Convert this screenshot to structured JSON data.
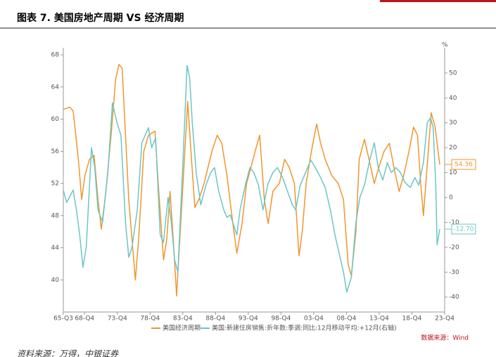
{
  "title": "图表 7. 美国房地产周期 VS 经济周期",
  "footer": "资料来源：万得，中银证券",
  "chart_data": {
    "type": "line",
    "y2_unit": "%",
    "source": "数据来源：Wind",
    "xlim": [
      1965.5,
      2023.75
    ],
    "xticks": [
      {
        "value": 1965.5,
        "label": "65-Q3"
      },
      {
        "value": 1968.75,
        "label": "68-Q4"
      },
      {
        "value": 1973.75,
        "label": "73-Q4"
      },
      {
        "value": 1978.75,
        "label": "78-Q4"
      },
      {
        "value": 1983.75,
        "label": "83-Q4"
      },
      {
        "value": 1988.75,
        "label": "88-Q4"
      },
      {
        "value": 1993.75,
        "label": "93-Q4"
      },
      {
        "value": 1998.75,
        "label": "98-Q4"
      },
      {
        "value": 2003.75,
        "label": "03-Q4"
      },
      {
        "value": 2008.75,
        "label": "08-Q4"
      },
      {
        "value": 2013.75,
        "label": "13-Q4"
      },
      {
        "value": 2018.75,
        "label": "18-Q4"
      },
      {
        "value": 2023.75,
        "label": "23-Q4"
      }
    ],
    "ylim": [
      36,
      68
    ],
    "yticks": [
      40,
      44,
      48,
      52,
      56,
      60,
      64,
      68
    ],
    "y2lim": [
      -46,
      57.3
    ],
    "y2ticks": [
      -40,
      -30,
      -20,
      -10,
      0,
      10,
      20,
      30,
      40,
      50
    ],
    "grid": false,
    "series": [
      {
        "name": "美国经济周期",
        "color": "#f0962e",
        "x": [
          1965.5,
          1966.5,
          1967,
          1967.8,
          1968.3,
          1968.8,
          1969.5,
          1970.2,
          1970.8,
          1971.3,
          1972,
          1972.8,
          1973.5,
          1974,
          1974.5,
          1975,
          1975.5,
          1976.5,
          1977,
          1977.8,
          1978.5,
          1979.5,
          1980,
          1980.8,
          1981.3,
          1981.8,
          1982.3,
          1982.8,
          1983.5,
          1984.5,
          1985,
          1985.6,
          1986.2,
          1987,
          1988.2,
          1989,
          1989.7,
          1990.5,
          1991.4,
          1992,
          1992.8,
          1993.5,
          1994,
          1994.8,
          1995.5,
          1996.2,
          1996.8,
          1997.5,
          1998.5,
          1999.3,
          2000,
          2000.8,
          2001.5,
          2002,
          2002.6,
          2003.4,
          2004.2,
          2004.8,
          2005.5,
          2006.5,
          2007.5,
          2008.3,
          2009,
          2009.5,
          2010.2,
          2010.7,
          2011.5,
          2012.2,
          2013,
          2013.7,
          2014.5,
          2015.3,
          2016,
          2016.8,
          2017.5,
          2018.3,
          2019,
          2019.6,
          2020.1,
          2020.5,
          2021.7,
          2022.3,
          2023
        ],
        "values": [
          61.2,
          61.5,
          61,
          55,
          50,
          53,
          55,
          55.5,
          50,
          46.3,
          51,
          58,
          65,
          66.8,
          66.3,
          58,
          50,
          40,
          45,
          56,
          58,
          58.5,
          52,
          42.5,
          45,
          51,
          45,
          38,
          48,
          62.2,
          56,
          49,
          50,
          52,
          56,
          58,
          57,
          53,
          47,
          43.3,
          47,
          52,
          53.5,
          56,
          58,
          50,
          47,
          51,
          52,
          55,
          54,
          52,
          43,
          46,
          52,
          56,
          59.4,
          57,
          55,
          53,
          52,
          50,
          42,
          40.5,
          46,
          55,
          57.5,
          55,
          52,
          54,
          56,
          57,
          54,
          51,
          53,
          56,
          59,
          58,
          52,
          48,
          60.8,
          59,
          54.36
        ]
      },
      {
        "name": "美国:新建住房销售:折年数:季调:同比:12月移动平均:+12月(右轴)",
        "color": "#6cc5c8",
        "axis": "y2",
        "x": [
          1965.5,
          1966,
          1967,
          1967.5,
          1968,
          1968.5,
          1969,
          1969.8,
          1970.3,
          1970.8,
          1971.5,
          1972.3,
          1973,
          1973.7,
          1974.3,
          1975,
          1975.5,
          1976,
          1976.8,
          1977.5,
          1978.5,
          1979,
          1979.6,
          1980.3,
          1980.8,
          1981.5,
          1982,
          1982.5,
          1983,
          1983.7,
          1984.4,
          1984.8,
          1985.2,
          1985.8,
          1986.5,
          1987.3,
          1988,
          1988.6,
          1989.2,
          1990,
          1990.5,
          1991,
          1992,
          1992.5,
          1993.3,
          1994,
          1994.6,
          1995.3,
          1996,
          1996.7,
          1997.5,
          1998.2,
          1999,
          1999.8,
          2000.5,
          2001,
          2001.7,
          2002.5,
          2003.3,
          2004,
          2004.8,
          2005.5,
          2006.3,
          2007,
          2007.6,
          2008.3,
          2008.8,
          2009.5,
          2010.2,
          2010.8,
          2011.5,
          2012.3,
          2013,
          2013.6,
          2014.3,
          2015,
          2015.6,
          2016.3,
          2017,
          2017.7,
          2018.5,
          2019.2,
          2019.8,
          2020.5,
          2021.1,
          2021.6,
          2022,
          2022.4,
          2022.6,
          2023
        ],
        "values": [
          3,
          -2,
          3,
          -5,
          -15,
          -28,
          -20,
          20,
          12,
          -5,
          -10,
          10,
          38,
          30,
          25,
          -10,
          -24,
          -20,
          -5,
          22,
          28,
          20,
          24,
          -15,
          -18,
          0,
          -10,
          -25,
          -30,
          10,
          53,
          48,
          30,
          10,
          -3,
          5,
          10,
          12,
          3,
          -5,
          -8,
          -7,
          -15,
          -5,
          5,
          12,
          10,
          5,
          -5,
          5,
          10,
          12,
          8,
          2,
          -3,
          -5,
          5,
          10,
          15,
          12,
          8,
          4,
          -5,
          -15,
          -22,
          -30,
          -38,
          -32,
          -10,
          0,
          5,
          15,
          22,
          12,
          7,
          14,
          10,
          12,
          10,
          6,
          4,
          8,
          5,
          14,
          30,
          32,
          28,
          5,
          -19,
          -12.7
        ],
        "value_labels": [
          null,
          null,
          null,
          null,
          null,
          null,
          null,
          null,
          null,
          null,
          null,
          null,
          null,
          null,
          null,
          null,
          null,
          null,
          null,
          null,
          null,
          null,
          null,
          null,
          null,
          null,
          null,
          null,
          null,
          null,
          null,
          null,
          null,
          null,
          null,
          null,
          null,
          null,
          null,
          null,
          null,
          null,
          null,
          null,
          null,
          null,
          null,
          null,
          null,
          null,
          null,
          null,
          null,
          null,
          null,
          null,
          null,
          null,
          null,
          null,
          null,
          null,
          null,
          null,
          null,
          null,
          null,
          null,
          null,
          null,
          null,
          null,
          null,
          null,
          null,
          null,
          null,
          null,
          null,
          null,
          null,
          null,
          null,
          null,
          null,
          null,
          null,
          null,
          null,
          "-12.70"
        ]
      }
    ]
  }
}
